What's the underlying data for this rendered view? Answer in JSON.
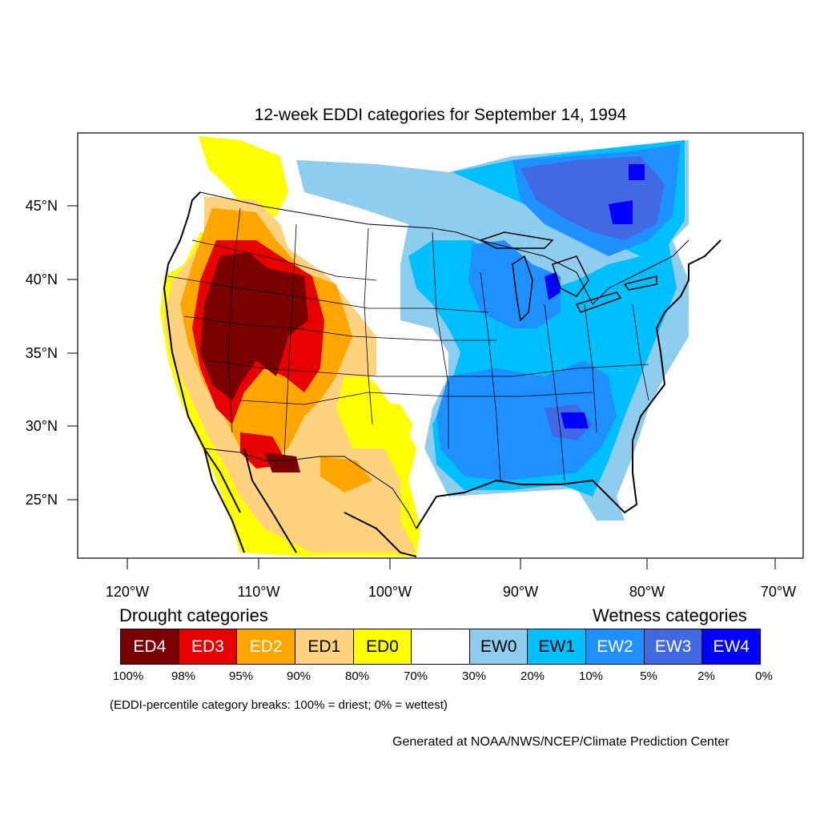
{
  "title": "12-week EDDI categories for September 14, 1994",
  "lat_labels": [
    "45°N",
    "40°N",
    "35°N",
    "30°N",
    "25°N"
  ],
  "lon_labels": [
    "120°W",
    "110°W",
    "100°W",
    "90°W",
    "80°W",
    "70°W"
  ],
  "legend": {
    "drought_title": "Drought categories",
    "wetness_title": "Wetness categories",
    "categories": [
      {
        "label": "ED4",
        "color": "#7a0000",
        "text_color": "#ffffff"
      },
      {
        "label": "ED3",
        "color": "#e60000",
        "text_color": "#ffffff"
      },
      {
        "label": "ED2",
        "color": "#ffa500",
        "text_color": "#ffffff"
      },
      {
        "label": "ED1",
        "color": "#ffd27f",
        "text_color": "#000000"
      },
      {
        "label": "ED0",
        "color": "#ffff00",
        "text_color": "#000000"
      },
      {
        "label": "",
        "color": "#ffffff",
        "text_color": "#000000"
      },
      {
        "label": "EW0",
        "color": "#8fcdee",
        "text_color": "#000000"
      },
      {
        "label": "EW1",
        "color": "#00bfff",
        "text_color": "#000000"
      },
      {
        "label": "EW2",
        "color": "#1e90ff",
        "text_color": "#ffffff"
      },
      {
        "label": "EW3",
        "color": "#4169e1",
        "text_color": "#ffffff"
      },
      {
        "label": "EW4",
        "color": "#0000ff",
        "text_color": "#ffffff"
      }
    ],
    "breaks": [
      "100%",
      "98%",
      "95%",
      "90%",
      "80%",
      "70%",
      "30%",
      "20%",
      "10%",
      "5%",
      "2%",
      "0%"
    ],
    "note": "(EDDI-percentile category breaks: 100% = driest; 0% = wettest)"
  },
  "credit": "Generated at NOAA/NWS/NCEP/Climate Prediction Center"
}
